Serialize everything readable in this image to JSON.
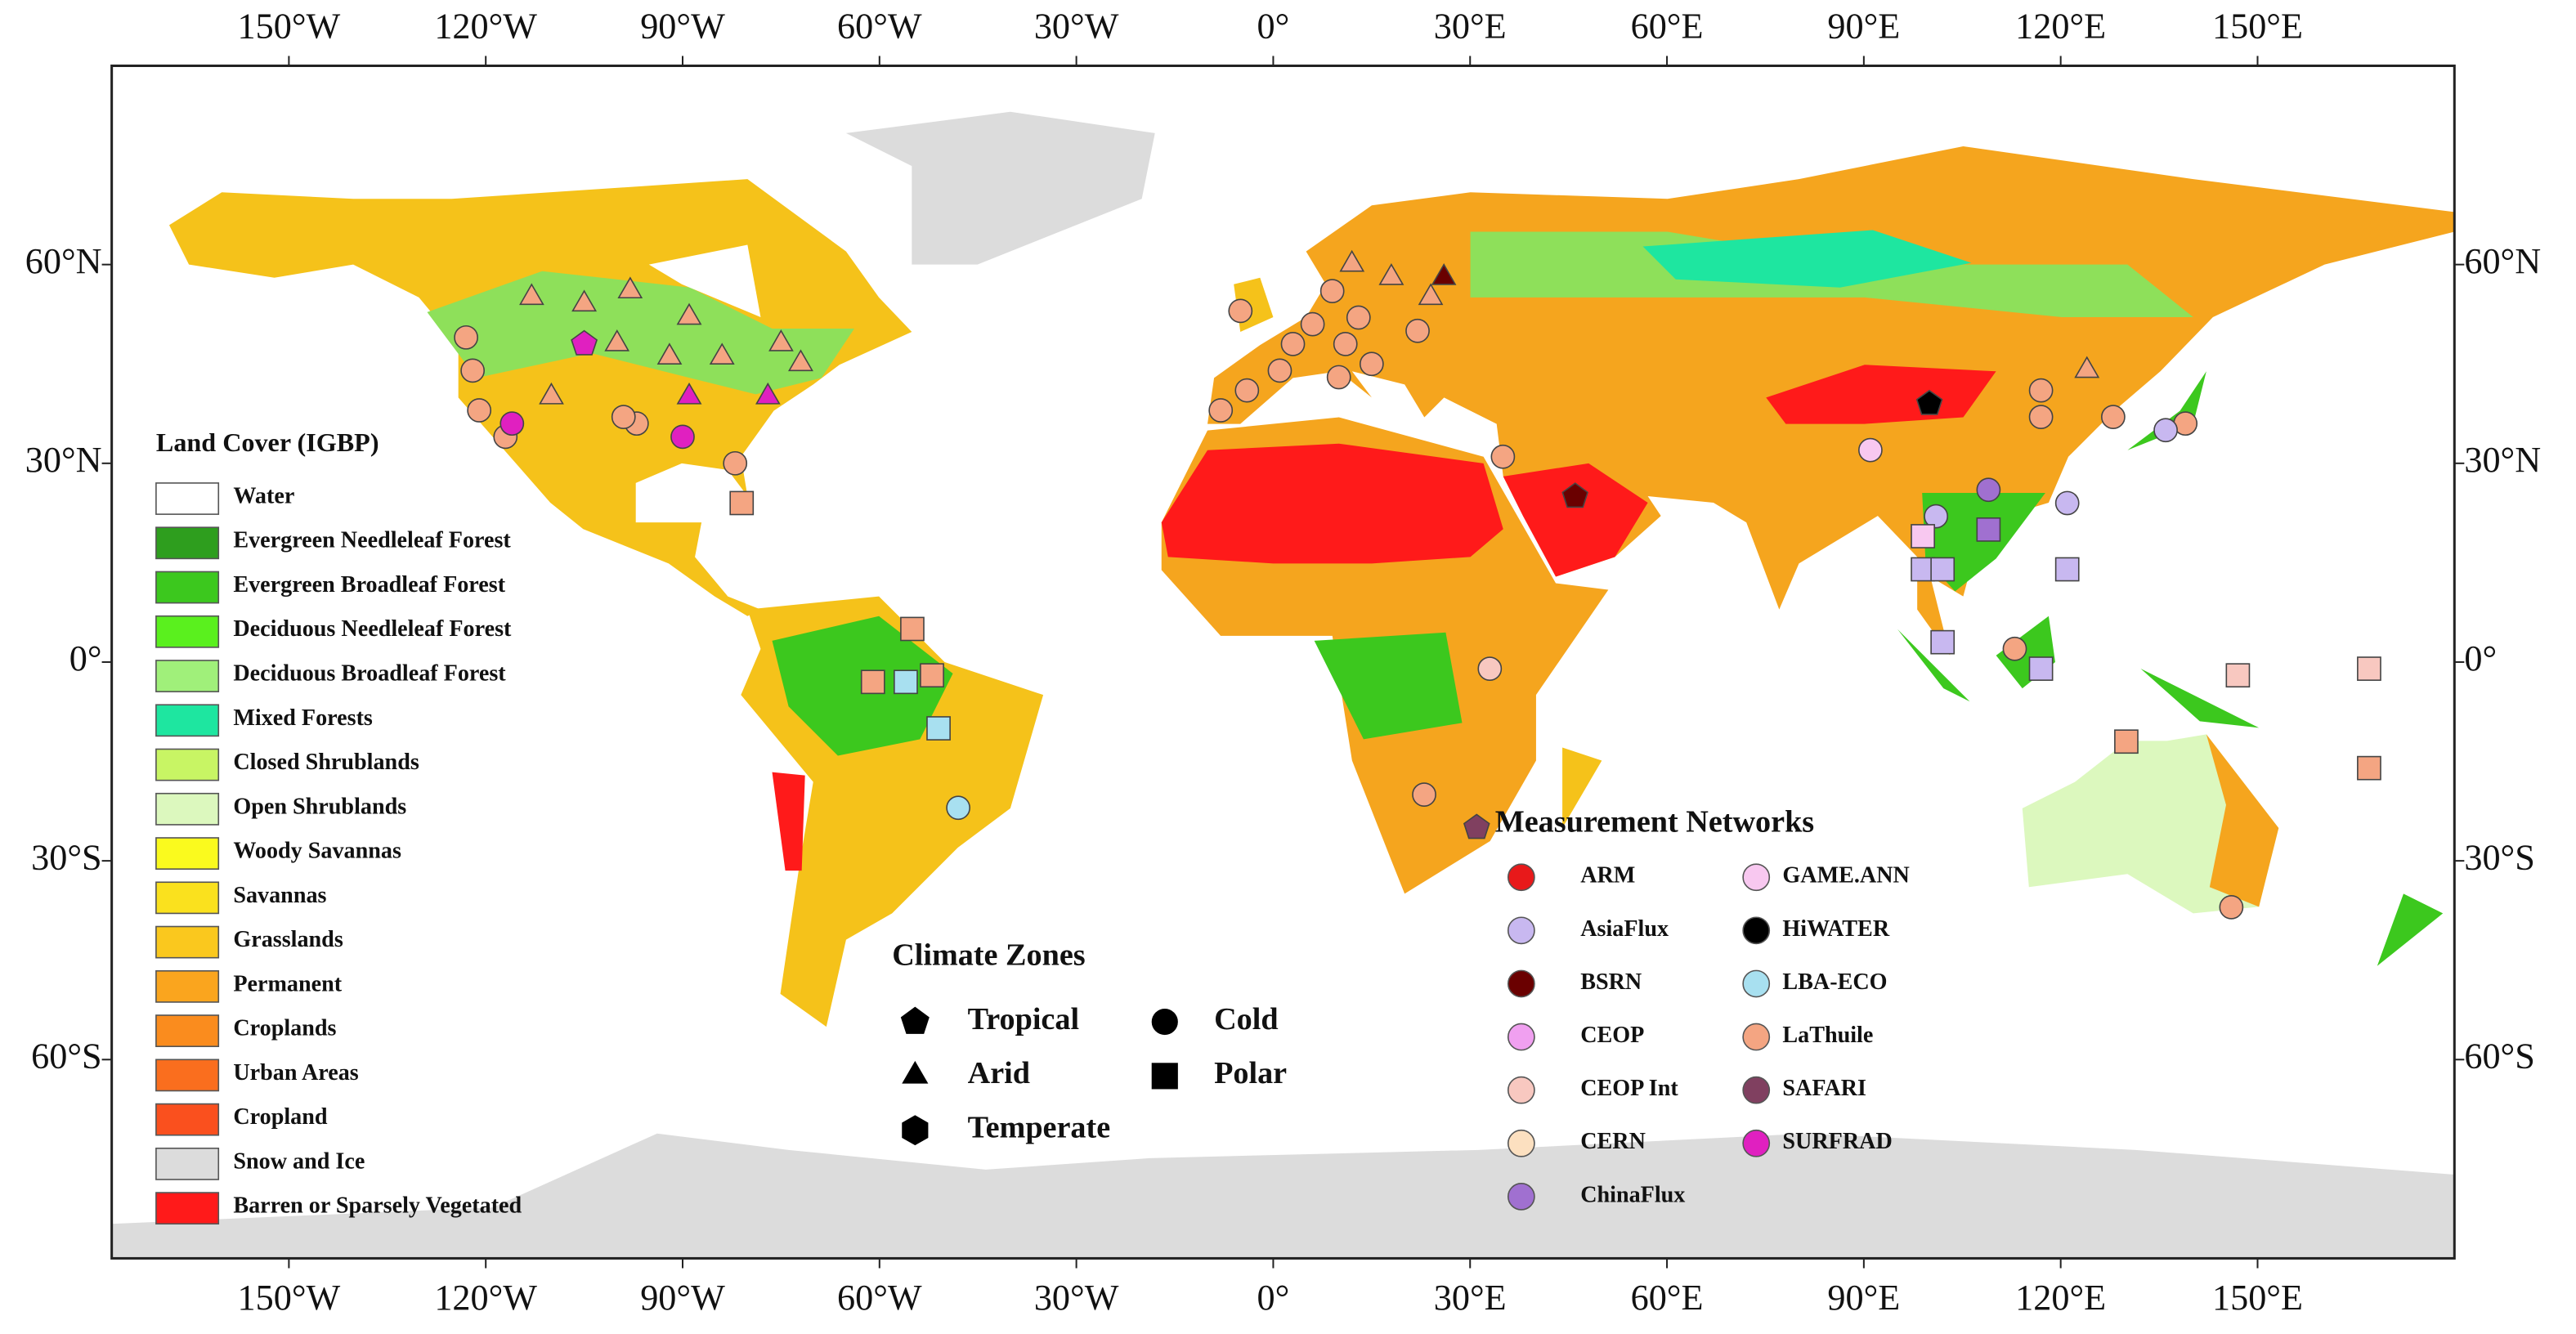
{
  "map": {
    "xlim": [
      -177,
      180
    ],
    "ylim": [
      -90,
      90
    ],
    "xticks": [
      {
        "value": -150,
        "label": "150°W"
      },
      {
        "value": -120,
        "label": "120°W"
      },
      {
        "value": -90,
        "label": "90°W"
      },
      {
        "value": -60,
        "label": "60°W"
      },
      {
        "value": -30,
        "label": "30°W"
      },
      {
        "value": 0,
        "label": "0°"
      },
      {
        "value": 30,
        "label": "30°E"
      },
      {
        "value": 60,
        "label": "60°E"
      },
      {
        "value": 90,
        "label": "90°E"
      },
      {
        "value": 120,
        "label": "120°E"
      },
      {
        "value": 150,
        "label": "150°E"
      }
    ],
    "yticks": [
      {
        "value": 60,
        "label": "60°N"
      },
      {
        "value": 30,
        "label": "30°N"
      },
      {
        "value": 0,
        "label": "0°"
      },
      {
        "value": -30,
        "label": "30°S"
      },
      {
        "value": -60,
        "label": "60°S"
      }
    ],
    "sites": [
      {
        "lon": -123,
        "lat": 49,
        "color": "#f4a582",
        "shape": "circle"
      },
      {
        "lon": -122,
        "lat": 44,
        "color": "#f4a582",
        "shape": "circle"
      },
      {
        "lon": -121,
        "lat": 38,
        "color": "#f4a582",
        "shape": "circle"
      },
      {
        "lon": -117,
        "lat": 34,
        "color": "#f4a582",
        "shape": "circle"
      },
      {
        "lon": -113,
        "lat": 55,
        "color": "#f4a582",
        "shape": "triangle"
      },
      {
        "lon": -105,
        "lat": 54,
        "color": "#f4a582",
        "shape": "triangle"
      },
      {
        "lon": -98,
        "lat": 56,
        "color": "#f4a582",
        "shape": "triangle"
      },
      {
        "lon": -89,
        "lat": 52,
        "color": "#f4a582",
        "shape": "triangle"
      },
      {
        "lon": -100,
        "lat": 48,
        "color": "#f4a582",
        "shape": "triangle"
      },
      {
        "lon": -92,
        "lat": 46,
        "color": "#f4a582",
        "shape": "triangle"
      },
      {
        "lon": -84,
        "lat": 46,
        "color": "#f4a582",
        "shape": "triangle"
      },
      {
        "lon": -75,
        "lat": 48,
        "color": "#f4a582",
        "shape": "triangle"
      },
      {
        "lon": -72,
        "lat": 45,
        "color": "#f4a582",
        "shape": "triangle"
      },
      {
        "lon": -110,
        "lat": 40,
        "color": "#f4a582",
        "shape": "triangle"
      },
      {
        "lon": -97,
        "lat": 36,
        "color": "#f4a582",
        "shape": "circle"
      },
      {
        "lon": -99,
        "lat": 37,
        "color": "#f4a582",
        "shape": "circle"
      },
      {
        "lon": -82,
        "lat": 30,
        "color": "#f4a582",
        "shape": "circle"
      },
      {
        "lon": -81,
        "lat": 24,
        "color": "#f4a582",
        "shape": "square"
      },
      {
        "lon": -105,
        "lat": 48,
        "color": "#e020c0",
        "shape": "pentagon"
      },
      {
        "lon": -89,
        "lat": 40,
        "color": "#e020c0",
        "shape": "triangle"
      },
      {
        "lon": -116,
        "lat": 36,
        "color": "#e020c0",
        "shape": "circle"
      },
      {
        "lon": -90,
        "lat": 34,
        "color": "#e020c0",
        "shape": "circle"
      },
      {
        "lon": -77,
        "lat": 40,
        "color": "#e020c0",
        "shape": "triangle"
      },
      {
        "lon": -8,
        "lat": 38,
        "color": "#f4a582",
        "shape": "circle"
      },
      {
        "lon": -4,
        "lat": 41,
        "color": "#f4a582",
        "shape": "circle"
      },
      {
        "lon": 1,
        "lat": 44,
        "color": "#f4a582",
        "shape": "circle"
      },
      {
        "lon": 3,
        "lat": 48,
        "color": "#f4a582",
        "shape": "circle"
      },
      {
        "lon": 6,
        "lat": 51,
        "color": "#f4a582",
        "shape": "circle"
      },
      {
        "lon": 11,
        "lat": 48,
        "color": "#f4a582",
        "shape": "circle"
      },
      {
        "lon": 13,
        "lat": 52,
        "color": "#f4a582",
        "shape": "circle"
      },
      {
        "lon": 15,
        "lat": 45,
        "color": "#f4a582",
        "shape": "circle"
      },
      {
        "lon": 10,
        "lat": 43,
        "color": "#f4a582",
        "shape": "circle"
      },
      {
        "lon": -5,
        "lat": 53,
        "color": "#f4a582",
        "shape": "circle"
      },
      {
        "lon": 9,
        "lat": 56,
        "color": "#f4a582",
        "shape": "circle"
      },
      {
        "lon": 22,
        "lat": 50,
        "color": "#f4a582",
        "shape": "circle"
      },
      {
        "lon": 12,
        "lat": 60,
        "color": "#f4a582",
        "shape": "triangle"
      },
      {
        "lon": 18,
        "lat": 58,
        "color": "#f4a582",
        "shape": "triangle"
      },
      {
        "lon": 24,
        "lat": 55,
        "color": "#f4a582",
        "shape": "triangle"
      },
      {
        "lon": 26,
        "lat": 58,
        "color": "#6a0000",
        "shape": "triangle"
      },
      {
        "lon": 100,
        "lat": 39,
        "color": "#000000",
        "shape": "pentagon"
      },
      {
        "lon": 109,
        "lat": 26,
        "color": "#a070d0",
        "shape": "circle"
      },
      {
        "lon": 117,
        "lat": 41,
        "color": "#f4a582",
        "shape": "circle"
      },
      {
        "lon": 117,
        "lat": 37,
        "color": "#f4a582",
        "shape": "circle"
      },
      {
        "lon": 121,
        "lat": 24,
        "color": "#c8b8f0",
        "shape": "circle"
      },
      {
        "lon": 101,
        "lat": 22,
        "color": "#c8b8f0",
        "shape": "circle"
      },
      {
        "lon": 139,
        "lat": 36,
        "color": "#f4a582",
        "shape": "circle"
      },
      {
        "lon": 136,
        "lat": 35,
        "color": "#c8b8f0",
        "shape": "circle"
      },
      {
        "lon": 128,
        "lat": 37,
        "color": "#f4a582",
        "shape": "circle"
      },
      {
        "lon": 124,
        "lat": 44,
        "color": "#f4a582",
        "shape": "triangle"
      },
      {
        "lon": 91,
        "lat": 32,
        "color": "#f8c8f0",
        "shape": "circle"
      },
      {
        "lon": 99,
        "lat": 19,
        "color": "#f8c8f0",
        "shape": "square"
      },
      {
        "lon": 109,
        "lat": 20,
        "color": "#a070d0",
        "shape": "square"
      },
      {
        "lon": 99,
        "lat": 14,
        "color": "#c8b8f0",
        "shape": "square"
      },
      {
        "lon": 102,
        "lat": 14,
        "color": "#c8b8f0",
        "shape": "square"
      },
      {
        "lon": 102,
        "lat": 3,
        "color": "#c8b8f0",
        "shape": "square"
      },
      {
        "lon": 121,
        "lat": 14,
        "color": "#c8b8f0",
        "shape": "square"
      },
      {
        "lon": 117,
        "lat": -1,
        "color": "#c8b8f0",
        "shape": "square"
      },
      {
        "lon": 113,
        "lat": 2,
        "color": "#f4a582",
        "shape": "circle"
      },
      {
        "lon": 130,
        "lat": -12,
        "color": "#f4a582",
        "shape": "square"
      },
      {
        "lon": 147,
        "lat": -2,
        "color": "#f8c8c0",
        "shape": "square"
      },
      {
        "lon": 167,
        "lat": -1,
        "color": "#f8c8c0",
        "shape": "square"
      },
      {
        "lon": 167,
        "lat": -16,
        "color": "#f4a582",
        "shape": "square"
      },
      {
        "lon": -55,
        "lat": 5,
        "color": "#f4a582",
        "shape": "square"
      },
      {
        "lon": -61,
        "lat": -3,
        "color": "#f4a582",
        "shape": "square"
      },
      {
        "lon": -56,
        "lat": -3,
        "color": "#a8e0f0",
        "shape": "square"
      },
      {
        "lon": -52,
        "lat": -2,
        "color": "#f4a582",
        "shape": "square"
      },
      {
        "lon": -51,
        "lat": -10,
        "color": "#a8e0f0",
        "shape": "square"
      },
      {
        "lon": -48,
        "lat": -22,
        "color": "#a8e0f0",
        "shape": "circle"
      },
      {
        "lon": 31,
        "lat": -25,
        "color": "#804060",
        "shape": "pentagon"
      },
      {
        "lon": 23,
        "lat": -20,
        "color": "#f4a582",
        "shape": "circle"
      },
      {
        "lon": 46,
        "lat": 25,
        "color": "#6a0000",
        "shape": "pentagon"
      },
      {
        "lon": 35,
        "lat": 31,
        "color": "#f4a582",
        "shape": "circle"
      },
      {
        "lon": 33,
        "lat": -1,
        "color": "#f8c8c0",
        "shape": "circle"
      },
      {
        "lon": 146,
        "lat": -37,
        "color": "#f4a582",
        "shape": "circle"
      }
    ]
  },
  "land_cover_legend": {
    "title": "Land Cover (IGBP)",
    "items": [
      {
        "label": "Water",
        "color": "#ffffff"
      },
      {
        "label": "Evergreen Needleleaf Forest",
        "color": "#2e9e1e"
      },
      {
        "label": "Evergreen Broadleaf Forest",
        "color": "#3cc81e"
      },
      {
        "label": "Deciduous Needleleaf Forest",
        "color": "#5af01e"
      },
      {
        "label": "Deciduous Broadleaf Forest",
        "color": "#a0f07a"
      },
      {
        "label": "Mixed Forests",
        "color": "#1ee6a0"
      },
      {
        "label": "Closed Shrublands",
        "color": "#c8f564"
      },
      {
        "label": "Open Shrublands",
        "color": "#dcf8be"
      },
      {
        "label": "Woody Savannas",
        "color": "#fafa1e"
      },
      {
        "label": "Savannas",
        "color": "#fae11e"
      },
      {
        "label": "Grasslands",
        "color": "#fac81e"
      },
      {
        "label": "Permanent",
        "color": "#faa51e"
      },
      {
        "label": "Croplands",
        "color": "#fa8c1e"
      },
      {
        "label": "Urban Areas",
        "color": "#fa6e1e"
      },
      {
        "label": "Cropland",
        "color": "#fa501e"
      },
      {
        "label": "Snow and Ice",
        "color": "#dcdcdc"
      },
      {
        "label": "Barren or Sparsely Vegetated",
        "color": "#ff1a1a"
      }
    ]
  },
  "climate_zones": {
    "title": "Climate Zones",
    "items": [
      {
        "label": "Tropical",
        "shape": "pentagon"
      },
      {
        "label": "Arid",
        "shape": "triangle"
      },
      {
        "label": "Temperate",
        "shape": "hexagon"
      },
      {
        "label": "Cold",
        "shape": "circle"
      },
      {
        "label": "Polar",
        "shape": "square"
      }
    ]
  },
  "networks": {
    "title": "Measurement Networks",
    "items": [
      {
        "label": "ARM",
        "color": "#e8191a"
      },
      {
        "label": "AsiaFlux",
        "color": "#c8b8f0"
      },
      {
        "label": "BSRN",
        "color": "#6a0000"
      },
      {
        "label": "CEOP",
        "color": "#f0a0f0"
      },
      {
        "label": "CEOP Int",
        "color": "#f8c8c0"
      },
      {
        "label": "CERN",
        "color": "#fce0c0"
      },
      {
        "label": "ChinaFlux",
        "color": "#a070d0"
      },
      {
        "label": "GAME.ANN",
        "color": "#f8c8f0"
      },
      {
        "label": "HiWATER",
        "color": "#000000"
      },
      {
        "label": "LBA-ECO",
        "color": "#a8e0f0"
      },
      {
        "label": "LaThuile",
        "color": "#f4a582"
      },
      {
        "label": "SAFARI",
        "color": "#804060"
      },
      {
        "label": "SURFRAD",
        "color": "#e020c0"
      }
    ]
  }
}
